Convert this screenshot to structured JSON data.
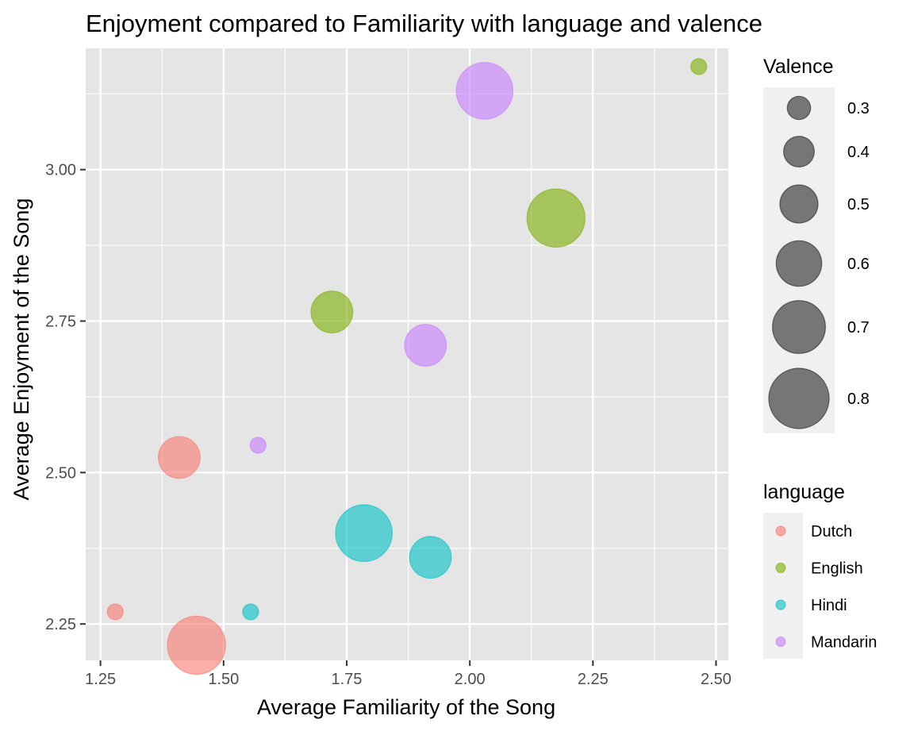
{
  "colors": {
    "panel_bg": "#e5e5e5",
    "grid": "#ffffff",
    "legend_key_bg": "#f0f0f0",
    "text_dark": "#000000",
    "text_axis": "#4d4d4d",
    "size_legend_fill": "#4d4d4d"
  },
  "chart_data": {
    "type": "scatter",
    "title": "Enjoyment compared to Familiarity with language and valence",
    "xlabel": "Average Familiarity of the Song",
    "ylabel": "Average Enjoyment of the Song",
    "xlim": [
      1.22,
      2.525
    ],
    "ylim": [
      2.19,
      3.2
    ],
    "x_ticks": [
      1.25,
      1.5,
      1.75,
      2.0,
      2.25,
      2.5
    ],
    "x_tick_labels": [
      "1.25",
      "1.50",
      "1.75",
      "2.00",
      "2.25",
      "2.50"
    ],
    "y_ticks": [
      2.25,
      2.5,
      2.75,
      3.0
    ],
    "y_tick_labels": [
      "2.25",
      "2.50",
      "2.75",
      "3.00"
    ],
    "grid": true,
    "color_legend": {
      "title": "language",
      "position": "right",
      "entries": [
        {
          "name": "Dutch",
          "color": "#F8766D"
        },
        {
          "name": "English",
          "color": "#7CAE00"
        },
        {
          "name": "Hindi",
          "color": "#00BFC4"
        },
        {
          "name": "Mandarin",
          "color": "#C77CFF"
        }
      ]
    },
    "size_legend": {
      "title": "Valence",
      "position": "right",
      "breaks": [
        0.3,
        0.4,
        0.5,
        0.6,
        0.7,
        0.8
      ],
      "labels": [
        "0.3",
        "0.4",
        "0.5",
        "0.6",
        "0.7",
        "0.8"
      ]
    },
    "points": [
      {
        "x": 1.28,
        "y": 2.27,
        "language": "Dutch",
        "valence": 0.2
      },
      {
        "x": 1.41,
        "y": 2.525,
        "language": "Dutch",
        "valence": 0.55
      },
      {
        "x": 1.445,
        "y": 2.215,
        "language": "Dutch",
        "valence": 0.77
      },
      {
        "x": 1.72,
        "y": 2.765,
        "language": "English",
        "valence": 0.55
      },
      {
        "x": 2.175,
        "y": 2.92,
        "language": "English",
        "valence": 0.77
      },
      {
        "x": 2.465,
        "y": 3.17,
        "language": "English",
        "valence": 0.2
      },
      {
        "x": 1.555,
        "y": 2.27,
        "language": "Hindi",
        "valence": 0.2
      },
      {
        "x": 1.785,
        "y": 2.4,
        "language": "Hindi",
        "valence": 0.75
      },
      {
        "x": 1.92,
        "y": 2.36,
        "language": "Hindi",
        "valence": 0.55
      },
      {
        "x": 1.57,
        "y": 2.545,
        "language": "Mandarin",
        "valence": 0.2
      },
      {
        "x": 1.91,
        "y": 2.71,
        "language": "Mandarin",
        "valence": 0.55
      },
      {
        "x": 2.03,
        "y": 3.13,
        "language": "Mandarin",
        "valence": 0.75
      }
    ]
  }
}
